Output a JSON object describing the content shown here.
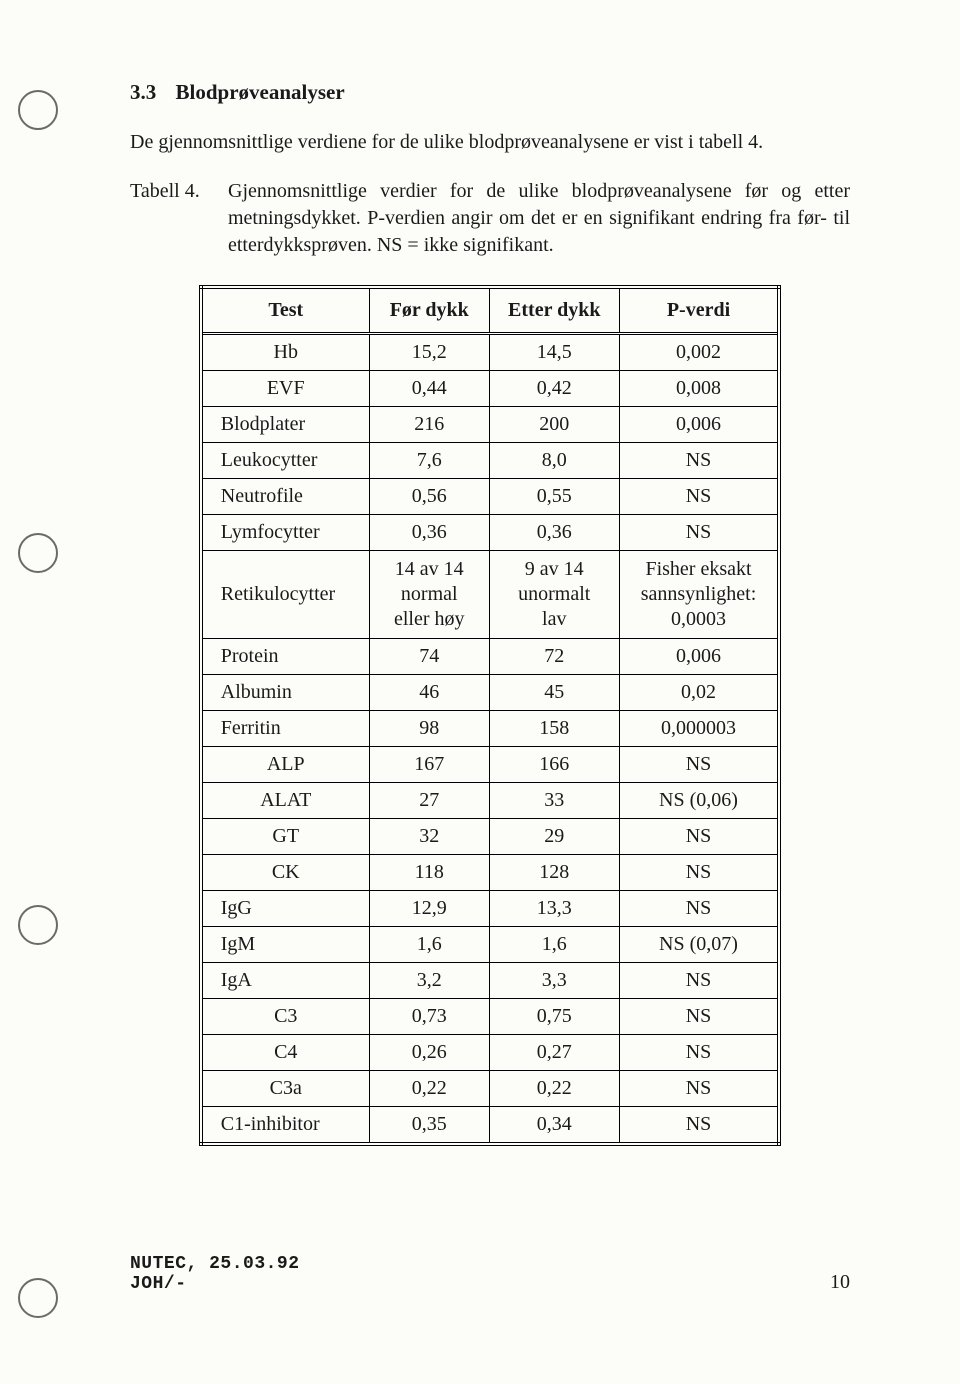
{
  "heading": {
    "num": "3.3",
    "title": "Blodprøveanalyser"
  },
  "intro": "De gjennomsnittlige verdiene for de ulike blodprøveanalysene er vist i tabell 4.",
  "caption": {
    "label": "Tabell 4.",
    "text": "Gjennomsnittlige verdier for de ulike blodprøveanalysene før og etter metningsdykket. P-verdien angir om det er en signifikant endring fra før- til etterdykksprøven. NS = ikke signifikant."
  },
  "table": {
    "headers": [
      "Test",
      "Før dykk",
      "Etter dykk",
      "P-verdi"
    ],
    "rows": [
      {
        "test": "Hb",
        "for": "15,2",
        "etter": "14,5",
        "p": "0,002",
        "center": true
      },
      {
        "test": "EVF",
        "for": "0,44",
        "etter": "0,42",
        "p": "0,008",
        "center": true
      },
      {
        "test": "Blodplater",
        "for": "216",
        "etter": "200",
        "p": "0,006"
      },
      {
        "test": "Leukocytter",
        "for": "7,6",
        "etter": "8,0",
        "p": "NS"
      },
      {
        "test": "Neutrofile",
        "for": "0,56",
        "etter": "0,55",
        "p": "NS"
      },
      {
        "test": "Lymfocytter",
        "for": "0,36",
        "etter": "0,36",
        "p": "NS"
      },
      {
        "test": "Retikulocytter",
        "for": "14 av 14\nnormal\neller høy",
        "etter": "9 av 14\nunormalt\nlav",
        "p": "Fisher eksakt\nsannsynlighet:\n0,0003"
      },
      {
        "test": "Protein",
        "for": "74",
        "etter": "72",
        "p": "0,006"
      },
      {
        "test": "Albumin",
        "for": "46",
        "etter": "45",
        "p": "0,02"
      },
      {
        "test": "Ferritin",
        "for": "98",
        "etter": "158",
        "p": "0,000003"
      },
      {
        "test": "ALP",
        "for": "167",
        "etter": "166",
        "p": "NS",
        "center": true
      },
      {
        "test": "ALAT",
        "for": "27",
        "etter": "33",
        "p": "NS (0,06)",
        "center": true
      },
      {
        "test": "GT",
        "for": "32",
        "etter": "29",
        "p": "NS",
        "center": true
      },
      {
        "test": "CK",
        "for": "118",
        "etter": "128",
        "p": "NS",
        "center": true
      },
      {
        "test": "IgG",
        "for": "12,9",
        "etter": "13,3",
        "p": "NS"
      },
      {
        "test": "IgM",
        "for": "1,6",
        "etter": "1,6",
        "p": "NS (0,07)"
      },
      {
        "test": "IgA",
        "for": "3,2",
        "etter": "3,3",
        "p": "NS"
      },
      {
        "test": "C3",
        "for": "0,73",
        "etter": "0,75",
        "p": "NS",
        "center": true
      },
      {
        "test": "C4",
        "for": "0,26",
        "etter": "0,27",
        "p": "NS",
        "center": true
      },
      {
        "test": "C3a",
        "for": "0,22",
        "etter": "0,22",
        "p": "NS",
        "center": true
      },
      {
        "test": "C1-inhibitor",
        "for": "0,35",
        "etter": "0,34",
        "p": "NS"
      }
    ]
  },
  "footer": {
    "line1": "NUTEC, 25.03.92",
    "line2": "JOH/-"
  },
  "page_number": "10"
}
